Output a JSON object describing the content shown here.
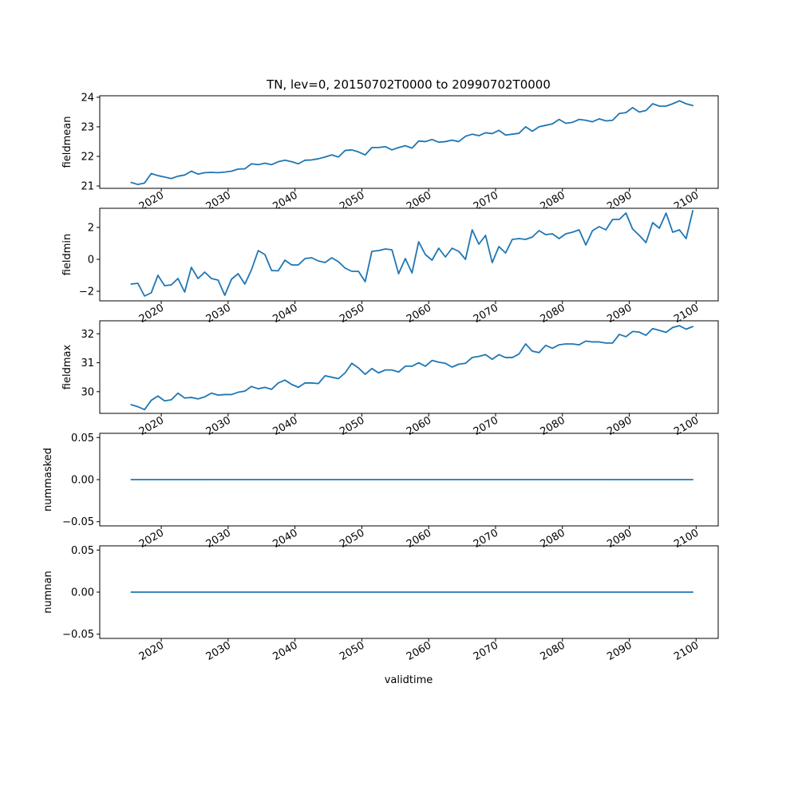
{
  "title": "TN, lev=0, 20150702T0000 to 20990702T0000",
  "xlabel": "validtime",
  "line_color": "#1f77b4",
  "chart_data": [
    {
      "type": "line",
      "ylabel": "fieldmean",
      "x_start": 2015.5,
      "x_step": 1,
      "xlim": [
        2010.8,
        2103.3
      ],
      "xticks": [
        2020,
        2030,
        2040,
        2050,
        2060,
        2070,
        2080,
        2090,
        2100
      ],
      "ylim": [
        20.92,
        24.05
      ],
      "yticks": [
        21,
        22,
        23,
        24
      ],
      "tick_labels": [
        "21",
        "22",
        "23",
        "24"
      ],
      "grid": false,
      "series": [
        {
          "values": [
            21.12,
            21.05,
            21.1,
            21.42,
            21.35,
            21.3,
            21.25,
            21.33,
            21.37,
            21.5,
            21.4,
            21.45,
            21.46,
            21.45,
            21.47,
            21.5,
            21.57,
            21.58,
            21.75,
            21.72,
            21.77,
            21.72,
            21.82,
            21.87,
            21.82,
            21.75,
            21.87,
            21.88,
            21.92,
            21.98,
            22.05,
            21.98,
            22.2,
            22.22,
            22.15,
            22.05,
            22.3,
            22.3,
            22.33,
            22.22,
            22.3,
            22.36,
            22.28,
            22.52,
            22.5,
            22.57,
            22.48,
            22.5,
            22.55,
            22.5,
            22.68,
            22.75,
            22.7,
            22.8,
            22.77,
            22.88,
            22.72,
            22.75,
            22.78,
            23.0,
            22.85,
            23.0,
            23.05,
            23.1,
            23.25,
            23.12,
            23.15,
            23.25,
            23.22,
            23.17,
            23.27,
            23.2,
            23.22,
            23.45,
            23.48,
            23.65,
            23.5,
            23.55,
            23.78,
            23.7,
            23.7,
            23.78,
            23.88,
            23.78,
            23.72
          ]
        }
      ]
    },
    {
      "type": "line",
      "ylabel": "fieldmin",
      "x_start": 2015.5,
      "x_step": 1,
      "xlim": [
        2010.8,
        2103.3
      ],
      "xticks": [
        2020,
        2030,
        2040,
        2050,
        2060,
        2070,
        2080,
        2090,
        2100
      ],
      "ylim": [
        -2.6,
        3.2
      ],
      "yticks": [
        -2,
        0,
        2
      ],
      "tick_labels": [
        "−2",
        "0",
        "2"
      ],
      "grid": false,
      "series": [
        {
          "values": [
            -1.55,
            -1.5,
            -2.3,
            -2.1,
            -1.0,
            -1.65,
            -1.6,
            -1.2,
            -2.05,
            -0.5,
            -1.2,
            -0.8,
            -1.2,
            -1.3,
            -2.25,
            -1.25,
            -0.9,
            -1.55,
            -0.65,
            0.55,
            0.3,
            -0.7,
            -0.72,
            -0.05,
            -0.35,
            -0.35,
            0.05,
            0.1,
            -0.1,
            -0.2,
            0.1,
            -0.15,
            -0.55,
            -0.75,
            -0.75,
            -1.4,
            0.5,
            0.55,
            0.65,
            0.6,
            -0.9,
            0.05,
            -0.85,
            1.1,
            0.3,
            -0.05,
            0.7,
            0.15,
            0.7,
            0.5,
            0.0,
            1.85,
            0.95,
            1.5,
            -0.2,
            0.8,
            0.4,
            1.25,
            1.3,
            1.25,
            1.4,
            1.8,
            1.55,
            1.6,
            1.3,
            1.6,
            1.7,
            1.85,
            0.9,
            1.8,
            2.05,
            1.85,
            2.5,
            2.5,
            2.9,
            1.9,
            1.5,
            1.05,
            2.3,
            1.95,
            2.9,
            1.7,
            1.85,
            1.3,
            3.05
          ]
        }
      ]
    },
    {
      "type": "line",
      "ylabel": "fieldmax",
      "x_start": 2015.5,
      "x_step": 1,
      "xlim": [
        2010.8,
        2103.3
      ],
      "xticks": [
        2020,
        2030,
        2040,
        2050,
        2060,
        2070,
        2080,
        2090,
        2100
      ],
      "ylim": [
        29.25,
        32.45
      ],
      "yticks": [
        30,
        31,
        32
      ],
      "tick_labels": [
        "30",
        "31",
        "32"
      ],
      "grid": false,
      "series": [
        {
          "values": [
            29.55,
            29.48,
            29.38,
            29.7,
            29.85,
            29.68,
            29.72,
            29.95,
            29.78,
            29.8,
            29.75,
            29.82,
            29.95,
            29.88,
            29.9,
            29.9,
            29.98,
            30.02,
            30.18,
            30.1,
            30.15,
            30.08,
            30.3,
            30.4,
            30.25,
            30.15,
            30.3,
            30.3,
            30.28,
            30.55,
            30.5,
            30.45,
            30.65,
            30.98,
            30.82,
            30.6,
            30.8,
            30.65,
            30.75,
            30.75,
            30.68,
            30.88,
            30.88,
            31.0,
            30.88,
            31.08,
            31.02,
            30.98,
            30.85,
            30.95,
            30.98,
            31.18,
            31.22,
            31.28,
            31.12,
            31.28,
            31.18,
            31.18,
            31.3,
            31.65,
            31.4,
            31.35,
            31.6,
            31.5,
            31.62,
            31.65,
            31.65,
            31.62,
            31.75,
            31.72,
            31.72,
            31.68,
            31.68,
            31.98,
            31.9,
            32.08,
            32.06,
            31.95,
            32.18,
            32.12,
            32.05,
            32.22,
            32.28,
            32.16,
            32.25
          ]
        }
      ]
    },
    {
      "type": "line",
      "ylabel": "nummasked",
      "x_start": 2015.5,
      "x_step": 1,
      "xlim": [
        2010.8,
        2103.3
      ],
      "xticks": [
        2020,
        2030,
        2040,
        2050,
        2060,
        2070,
        2080,
        2090,
        2100
      ],
      "ylim": [
        -0.055,
        0.055
      ],
      "yticks": [
        -0.05,
        0,
        0.05
      ],
      "tick_labels": [
        "−0.05",
        "0.00",
        "0.05"
      ],
      "grid": false,
      "series": [
        {
          "values": [
            0,
            0,
            0,
            0,
            0,
            0,
            0,
            0,
            0,
            0,
            0,
            0,
            0,
            0,
            0,
            0,
            0,
            0,
            0,
            0,
            0,
            0,
            0,
            0,
            0,
            0,
            0,
            0,
            0,
            0,
            0,
            0,
            0,
            0,
            0,
            0,
            0,
            0,
            0,
            0,
            0,
            0,
            0,
            0,
            0,
            0,
            0,
            0,
            0,
            0,
            0,
            0,
            0,
            0,
            0,
            0,
            0,
            0,
            0,
            0,
            0,
            0,
            0,
            0,
            0,
            0,
            0,
            0,
            0,
            0,
            0,
            0,
            0,
            0,
            0,
            0,
            0,
            0,
            0,
            0,
            0,
            0,
            0,
            0,
            0
          ]
        }
      ]
    },
    {
      "type": "line",
      "ylabel": "numnan",
      "x_start": 2015.5,
      "x_step": 1,
      "xlim": [
        2010.8,
        2103.3
      ],
      "xticks": [
        2020,
        2030,
        2040,
        2050,
        2060,
        2070,
        2080,
        2090,
        2100
      ],
      "ylim": [
        -0.055,
        0.055
      ],
      "yticks": [
        -0.05,
        0,
        0.05
      ],
      "tick_labels": [
        "−0.05",
        "0.00",
        "0.05"
      ],
      "grid": false,
      "series": [
        {
          "values": [
            0,
            0,
            0,
            0,
            0,
            0,
            0,
            0,
            0,
            0,
            0,
            0,
            0,
            0,
            0,
            0,
            0,
            0,
            0,
            0,
            0,
            0,
            0,
            0,
            0,
            0,
            0,
            0,
            0,
            0,
            0,
            0,
            0,
            0,
            0,
            0,
            0,
            0,
            0,
            0,
            0,
            0,
            0,
            0,
            0,
            0,
            0,
            0,
            0,
            0,
            0,
            0,
            0,
            0,
            0,
            0,
            0,
            0,
            0,
            0,
            0,
            0,
            0,
            0,
            0,
            0,
            0,
            0,
            0,
            0,
            0,
            0,
            0,
            0,
            0,
            0,
            0,
            0,
            0,
            0,
            0,
            0,
            0,
            0,
            0
          ]
        }
      ]
    }
  ]
}
